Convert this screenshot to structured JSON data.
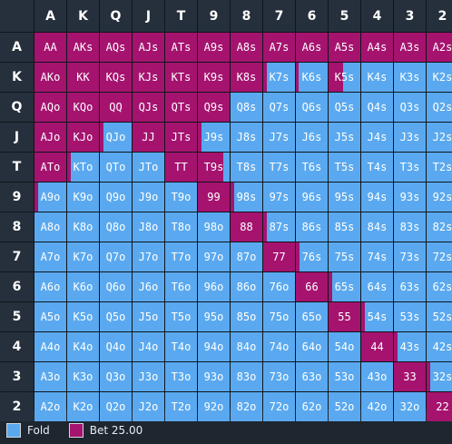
{
  "ranks": [
    "A",
    "K",
    "Q",
    "J",
    "T",
    "9",
    "8",
    "7",
    "6",
    "5",
    "4",
    "3",
    "2"
  ],
  "colors": {
    "fold": "#5aa9f0",
    "bet": "#a5136f",
    "text_on_bet": "#ffffff",
    "text_on_fold": "#ffffff",
    "header_bg": "#26303c"
  },
  "legend": {
    "fold_label": "Fold",
    "bet_label": "Bet 25.00"
  },
  "bet_fraction": [
    [
      1,
      1,
      1,
      1,
      1,
      1,
      1,
      1,
      1,
      1,
      1,
      1,
      1
    ],
    [
      1,
      1,
      1,
      1,
      1,
      1,
      1,
      0.1,
      0.08,
      0.45,
      0,
      0,
      0
    ],
    [
      1,
      1,
      1,
      1,
      1,
      1,
      0,
      0,
      0,
      0,
      0,
      0,
      0
    ],
    [
      1,
      1,
      0.1,
      1,
      1,
      0.1,
      0,
      0,
      0,
      0,
      0,
      0,
      0
    ],
    [
      1,
      0.1,
      0,
      0,
      1,
      0.8,
      0,
      0,
      0,
      0,
      0,
      0,
      0
    ],
    [
      0.1,
      0,
      0,
      0,
      0,
      1,
      0.1,
      0,
      0,
      0,
      0,
      0,
      0
    ],
    [
      0,
      0,
      0,
      0,
      0,
      0,
      1,
      0.1,
      0,
      0,
      0,
      0,
      0
    ],
    [
      0,
      0,
      0,
      0,
      0,
      0,
      0,
      1,
      0.1,
      0,
      0,
      0,
      0
    ],
    [
      0,
      0,
      0,
      0,
      0,
      0,
      0,
      0,
      1,
      0.1,
      0,
      0,
      0
    ],
    [
      0,
      0,
      0,
      0,
      0,
      0,
      0,
      0,
      0,
      1,
      0.1,
      0,
      0
    ],
    [
      0,
      0,
      0,
      0,
      0,
      0,
      0,
      0,
      0,
      0,
      1,
      0.1,
      0
    ],
    [
      0,
      0,
      0,
      0,
      0,
      0,
      0,
      0,
      0,
      0,
      0,
      1,
      0.1
    ],
    [
      0,
      0,
      0,
      0,
      0,
      0,
      0,
      0,
      0,
      0,
      0,
      0,
      1
    ]
  ]
}
